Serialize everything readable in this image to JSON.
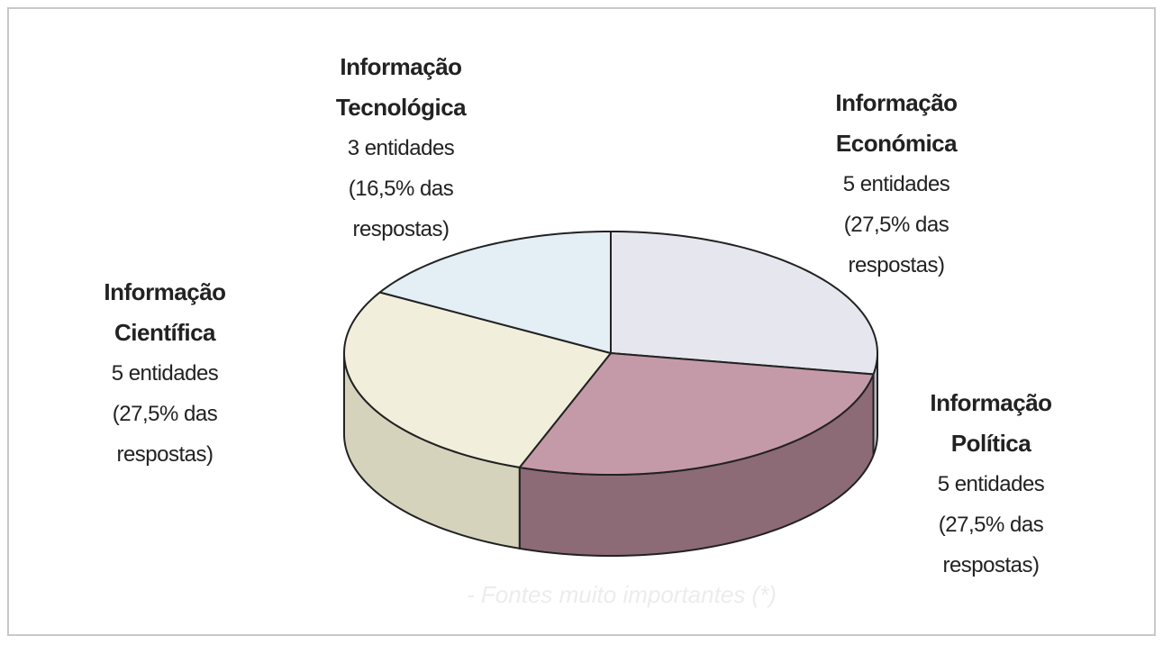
{
  "chart_data": {
    "type": "pie3d",
    "categories": [
      "Informação Económica",
      "Informação Política",
      "Informação Científica",
      "Informação Tecnológica"
    ],
    "values": [
      27.5,
      27.5,
      27.5,
      16.5
    ],
    "value_labels": [
      "(27,5% das respostas)",
      "(27,5% das respostas)",
      "(27,5% das respostas)",
      "(16,5% das respostas)"
    ],
    "entity_labels": [
      "5 entidades",
      "5 entidades",
      "5 entidades",
      "3 entidades"
    ],
    "colors": [
      "#e6e6ef",
      "#c59aa8",
      "#f1efdc",
      "#e3eef5"
    ],
    "side_colors": [
      "#b8b8c4",
      "#8c6a76",
      "#d6d3bd",
      "#bfcbd2"
    ],
    "note": "- Fontes muito importantes (*)"
  }
}
